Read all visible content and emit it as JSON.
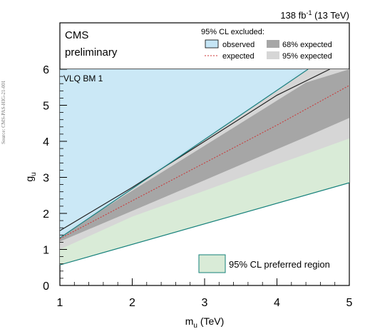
{
  "source_note": "Source: CMS-PAS-HIG-21-001",
  "colors": {
    "observed_fill": "#c5e5f5",
    "observed_edge": "#1a8080",
    "preferred_fill": "#d9ebd7",
    "preferred_edge": "#14807a",
    "band95": "#d6d6d6",
    "band68": "#a6a6a6",
    "expected_line": "#cc3333",
    "obs_line": "#222222"
  },
  "chart_data": {
    "type": "area",
    "lumi_label": "138 fb",
    "lumi_sup": "-1",
    "lumi_energy": " (13 TeV)",
    "experiment": "CMS",
    "status": "preliminary",
    "benchmark": "VLQ BM 1",
    "xlabel_main": "m",
    "xlabel_sub": "u",
    "xlabel_unit": " (TeV)",
    "ylabel_main": "g",
    "ylabel_sub": "u",
    "xlim": [
      1,
      5
    ],
    "ylim": [
      0,
      6.3
    ],
    "x_ticks": [
      "1",
      "2",
      "3",
      "4",
      "5"
    ],
    "y_ticks": [
      "0",
      "1",
      "2",
      "3",
      "4",
      "5",
      "6"
    ],
    "legend": {
      "header": "95% CL excluded:",
      "observed": "observed",
      "expected": "expected",
      "band68": "68% expected",
      "band95": "95% expected",
      "preferred": "95% CL preferred region"
    },
    "observed_excluded": {
      "x": [
        1,
        4.43,
        1
      ],
      "y": [
        1.32,
        6.0,
        6.0
      ]
    },
    "observed_limit": {
      "x": [
        1,
        2,
        3,
        4,
        4.73
      ],
      "y": [
        1.52,
        2.72,
        4.0,
        5.28,
        6.0
      ]
    },
    "expected": {
      "x": [
        1,
        2,
        3,
        4,
        5
      ],
      "y": [
        1.3,
        2.35,
        3.4,
        4.45,
        5.55
      ]
    },
    "band68": {
      "x": [
        1,
        2,
        3,
        4,
        4.4,
        5
      ],
      "upper": [
        1.37,
        2.63,
        3.88,
        5.13,
        5.63,
        6.0
      ],
      "lower": [
        1.22,
        2.07,
        2.92,
        3.78,
        4.12,
        4.65
      ]
    },
    "band95": {
      "x": [
        1,
        2,
        3,
        4,
        4.35,
        5
      ],
      "upper": [
        1.42,
        2.77,
        4.11,
        5.44,
        6.0,
        6.0
      ],
      "lower": [
        1.0,
        1.91,
        2.63,
        3.36,
        3.61,
        4.08
      ]
    },
    "preferred_region": {
      "x": [
        1,
        2,
        3,
        4,
        5
      ],
      "upper": [
        1.35,
        2.35,
        3.4,
        4.45,
        5.55
      ],
      "lower": [
        0.57,
        1.14,
        1.71,
        2.28,
        2.85
      ]
    },
    "observed_boundary": {
      "x": [
        1,
        4.43
      ],
      "y": [
        1.32,
        6.0
      ]
    },
    "preferred_lower_boundary": {
      "x": [
        1,
        5
      ],
      "y": [
        0.57,
        2.85
      ]
    }
  }
}
